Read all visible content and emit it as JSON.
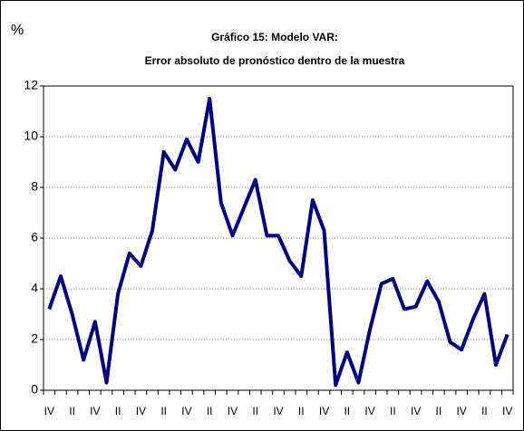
{
  "chart_data": {
    "type": "line",
    "title": [
      "Gráfico 15: Modelo VAR:",
      "Error absoluto de pronóstico dentro de la muestra"
    ],
    "y_label": "%",
    "categories": [
      "IV",
      null,
      "II",
      null,
      "IV",
      null,
      "II",
      null,
      "IV",
      null,
      "II",
      null,
      "IV",
      null,
      "II",
      null,
      "IV",
      null,
      "II",
      null,
      "IV",
      null,
      "II",
      null,
      "IV",
      null,
      "II",
      null,
      "IV",
      null,
      "II",
      null,
      "IV",
      null,
      "II",
      null,
      "IV",
      null,
      "II",
      null,
      "IV"
    ],
    "series": [
      {
        "name": "Error absoluto",
        "color": "#000080",
        "values": [
          3.2,
          4.5,
          3.0,
          1.2,
          2.7,
          0.3,
          3.8,
          5.4,
          4.9,
          6.3,
          9.4,
          8.7,
          9.9,
          9.0,
          11.5,
          7.4,
          6.1,
          7.2,
          8.3,
          6.1,
          6.1,
          5.1,
          4.5,
          7.5,
          6.3,
          0.2,
          1.5,
          0.3,
          2.4,
          4.2,
          4.4,
          3.2,
          3.3,
          4.3,
          3.5,
          1.9,
          1.6,
          2.8,
          3.8,
          1.0,
          2.2
        ]
      }
    ],
    "ylim": [
      0,
      12
    ],
    "yticks": [
      0,
      2,
      4,
      6,
      8,
      10,
      12
    ],
    "grid": true
  }
}
